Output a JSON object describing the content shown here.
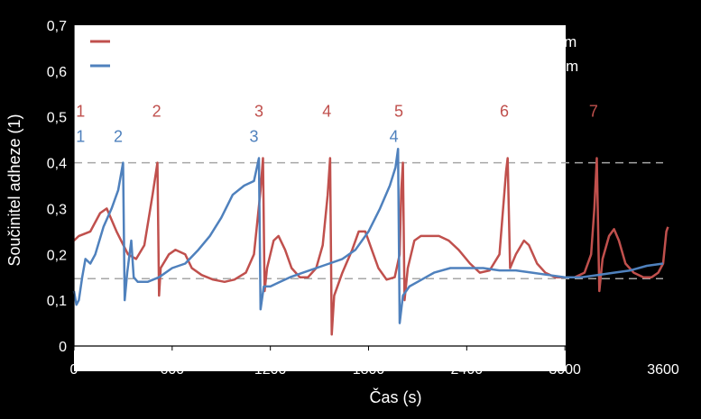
{
  "chart_data": {
    "type": "line",
    "xlabel": "Čas (s)",
    "ylabel": "Součinitel adheze (1)",
    "xlim": [
      0,
      3600
    ],
    "ylim": [
      0,
      0.7
    ],
    "x_ticks": [
      "0",
      "600",
      "1200",
      "1800",
      "2400",
      "3000",
      "3600"
    ],
    "y_ticks": [
      "0",
      "0,1",
      "0,2",
      "0,3",
      "0,4",
      "0,5",
      "0,6",
      "0,7"
    ],
    "grid": false,
    "legend_position": "top",
    "reference_lines": [
      0.4,
      0.147
    ],
    "series": [
      {
        "name": "7,5 % bentonit + 5 % mastek L + 2 % disulfid molybdenu - suchý film",
        "color": "#c0504d",
        "points": [
          [
            0,
            0.23
          ],
          [
            30,
            0.24
          ],
          [
            100,
            0.25
          ],
          [
            160,
            0.29
          ],
          [
            200,
            0.3
          ],
          [
            260,
            0.25
          ],
          [
            330,
            0.2
          ],
          [
            380,
            0.19
          ],
          [
            430,
            0.22
          ],
          [
            480,
            0.33
          ],
          [
            510,
            0.4
          ],
          [
            520,
            0.11
          ],
          [
            530,
            0.17
          ],
          [
            580,
            0.2
          ],
          [
            620,
            0.21
          ],
          [
            680,
            0.2
          ],
          [
            720,
            0.17
          ],
          [
            780,
            0.155
          ],
          [
            850,
            0.145
          ],
          [
            920,
            0.14
          ],
          [
            980,
            0.145
          ],
          [
            1050,
            0.16
          ],
          [
            1100,
            0.2
          ],
          [
            1140,
            0.34
          ],
          [
            1155,
            0.41
          ],
          [
            1165,
            0.12
          ],
          [
            1180,
            0.17
          ],
          [
            1220,
            0.23
          ],
          [
            1250,
            0.24
          ],
          [
            1290,
            0.21
          ],
          [
            1330,
            0.17
          ],
          [
            1380,
            0.15
          ],
          [
            1430,
            0.15
          ],
          [
            1480,
            0.17
          ],
          [
            1520,
            0.22
          ],
          [
            1550,
            0.33
          ],
          [
            1565,
            0.41
          ],
          [
            1575,
            0.025
          ],
          [
            1590,
            0.11
          ],
          [
            1640,
            0.16
          ],
          [
            1700,
            0.21
          ],
          [
            1740,
            0.25
          ],
          [
            1780,
            0.25
          ],
          [
            1820,
            0.21
          ],
          [
            1860,
            0.17
          ],
          [
            1910,
            0.145
          ],
          [
            1960,
            0.15
          ],
          [
            1990,
            0.2
          ],
          [
            2000,
            0.34
          ],
          [
            2010,
            0.4
          ],
          [
            2020,
            0.1
          ],
          [
            2040,
            0.17
          ],
          [
            2080,
            0.23
          ],
          [
            2120,
            0.24
          ],
          [
            2170,
            0.24
          ],
          [
            2230,
            0.24
          ],
          [
            2290,
            0.23
          ],
          [
            2350,
            0.21
          ],
          [
            2420,
            0.18
          ],
          [
            2480,
            0.16
          ],
          [
            2540,
            0.165
          ],
          [
            2600,
            0.2
          ],
          [
            2640,
            0.38
          ],
          [
            2650,
            0.41
          ],
          [
            2665,
            0.17
          ],
          [
            2700,
            0.2
          ],
          [
            2750,
            0.23
          ],
          [
            2780,
            0.22
          ],
          [
            2830,
            0.18
          ],
          [
            2880,
            0.16
          ],
          [
            2940,
            0.15
          ],
          [
            3000,
            0.15
          ],
          [
            3060,
            0.15
          ],
          [
            3120,
            0.16
          ],
          [
            3160,
            0.2
          ],
          [
            3180,
            0.3
          ],
          [
            3195,
            0.41
          ],
          [
            3210,
            0.12
          ],
          [
            3230,
            0.19
          ],
          [
            3270,
            0.24
          ],
          [
            3300,
            0.255
          ],
          [
            3330,
            0.23
          ],
          [
            3370,
            0.18
          ],
          [
            3420,
            0.16
          ],
          [
            3480,
            0.15
          ],
          [
            3530,
            0.15
          ],
          [
            3570,
            0.16
          ],
          [
            3600,
            0.18
          ],
          [
            3620,
            0.25
          ],
          [
            3630,
            0.26
          ]
        ]
      },
      {
        "name": "7,5 % bentonit + 5 % mastek L + 2 % disulfid molybdenu - mokrý film",
        "color": "#4f81bd",
        "points": [
          [
            0,
            0.12
          ],
          [
            15,
            0.09
          ],
          [
            30,
            0.1
          ],
          [
            50,
            0.15
          ],
          [
            70,
            0.19
          ],
          [
            100,
            0.18
          ],
          [
            130,
            0.2
          ],
          [
            180,
            0.26
          ],
          [
            230,
            0.3
          ],
          [
            270,
            0.34
          ],
          [
            300,
            0.4
          ],
          [
            310,
            0.1
          ],
          [
            325,
            0.16
          ],
          [
            350,
            0.23
          ],
          [
            365,
            0.15
          ],
          [
            390,
            0.14
          ],
          [
            450,
            0.14
          ],
          [
            520,
            0.15
          ],
          [
            600,
            0.17
          ],
          [
            680,
            0.18
          ],
          [
            760,
            0.21
          ],
          [
            830,
            0.24
          ],
          [
            900,
            0.28
          ],
          [
            970,
            0.33
          ],
          [
            1040,
            0.35
          ],
          [
            1100,
            0.36
          ],
          [
            1130,
            0.41
          ],
          [
            1140,
            0.08
          ],
          [
            1160,
            0.13
          ],
          [
            1200,
            0.13
          ],
          [
            1260,
            0.14
          ],
          [
            1320,
            0.15
          ],
          [
            1400,
            0.16
          ],
          [
            1480,
            0.17
          ],
          [
            1560,
            0.18
          ],
          [
            1640,
            0.19
          ],
          [
            1720,
            0.21
          ],
          [
            1800,
            0.25
          ],
          [
            1870,
            0.3
          ],
          [
            1930,
            0.35
          ],
          [
            1965,
            0.39
          ],
          [
            1980,
            0.43
          ],
          [
            1990,
            0.05
          ],
          [
            2010,
            0.11
          ],
          [
            2050,
            0.13
          ],
          [
            2100,
            0.14
          ],
          [
            2150,
            0.15
          ],
          [
            2200,
            0.16
          ],
          [
            2300,
            0.17
          ],
          [
            2400,
            0.17
          ],
          [
            2500,
            0.17
          ],
          [
            2600,
            0.165
          ],
          [
            2700,
            0.165
          ],
          [
            2800,
            0.16
          ],
          [
            2900,
            0.155
          ],
          [
            3000,
            0.15
          ],
          [
            3100,
            0.15
          ],
          [
            3200,
            0.155
          ],
          [
            3300,
            0.16
          ],
          [
            3400,
            0.165
          ],
          [
            3500,
            0.175
          ],
          [
            3600,
            0.18
          ]
        ]
      }
    ],
    "annotations": [
      {
        "text": "1",
        "x": 40,
        "y": 0.5,
        "series": 0
      },
      {
        "text": "2",
        "x": 505,
        "y": 0.5,
        "series": 0
      },
      {
        "text": "3",
        "x": 1130,
        "y": 0.5,
        "series": 0
      },
      {
        "text": "4",
        "x": 1545,
        "y": 0.5,
        "series": 0
      },
      {
        "text": "5",
        "x": 1985,
        "y": 0.5,
        "series": 0
      },
      {
        "text": "6",
        "x": 2630,
        "y": 0.5,
        "series": 0
      },
      {
        "text": "7",
        "x": 3175,
        "y": 0.5,
        "series": 0
      },
      {
        "text": "1",
        "x": 40,
        "y": 0.445,
        "series": 1
      },
      {
        "text": "2",
        "x": 270,
        "y": 0.445,
        "series": 1
      },
      {
        "text": "3",
        "x": 1100,
        "y": 0.445,
        "series": 1
      },
      {
        "text": "4",
        "x": 1955,
        "y": 0.445,
        "series": 1
      }
    ]
  }
}
